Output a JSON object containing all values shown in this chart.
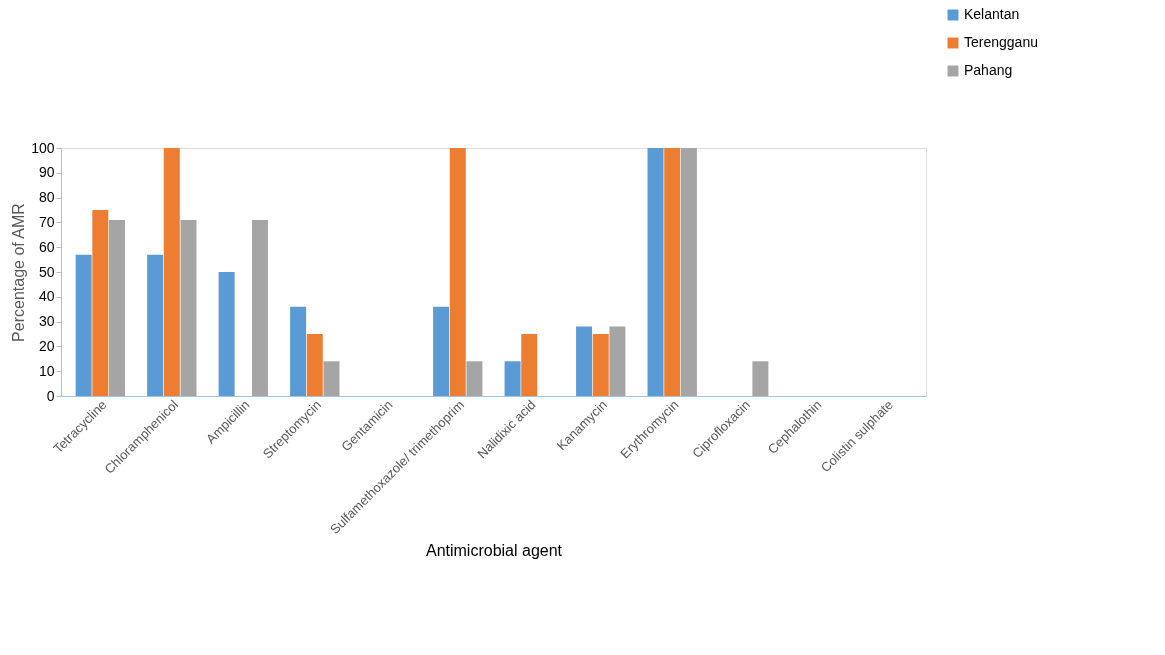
{
  "chart_data": {
    "type": "bar",
    "xlabel": "Antimicrobial agent",
    "ylabel": "Percentage of AMR",
    "categories": [
      "Tetracycline",
      "Chloramphenicol",
      "Ampicillin",
      "Streptomycin",
      "Gentamicin",
      "Sulfamethoxazole/ trimethoprim",
      "Nalidixic acid",
      "Kanamycin",
      "Erythromycin",
      "Ciprofloxacin",
      "Cephalothin",
      "Colistin sulphate"
    ],
    "series": [
      {
        "name": "Kelantan",
        "color": "#5b9bd5",
        "values": [
          57,
          57,
          50,
          36,
          0,
          36,
          14,
          28,
          100,
          0,
          0,
          0
        ]
      },
      {
        "name": "Terengganu",
        "color": "#ed7d31",
        "values": [
          75,
          100,
          0,
          25,
          0,
          100,
          25,
          25,
          100,
          0,
          0,
          0
        ]
      },
      {
        "name": "Pahang",
        "color": "#a5a5a5",
        "values": [
          71,
          71,
          71,
          14,
          0,
          14,
          0,
          28,
          100,
          14,
          0,
          0
        ]
      }
    ],
    "ylim": [
      0,
      100
    ],
    "yticks": [
      0,
      10,
      20,
      30,
      40,
      50,
      60,
      70,
      80,
      90,
      100
    ],
    "grid": false,
    "legend": "top right"
  }
}
